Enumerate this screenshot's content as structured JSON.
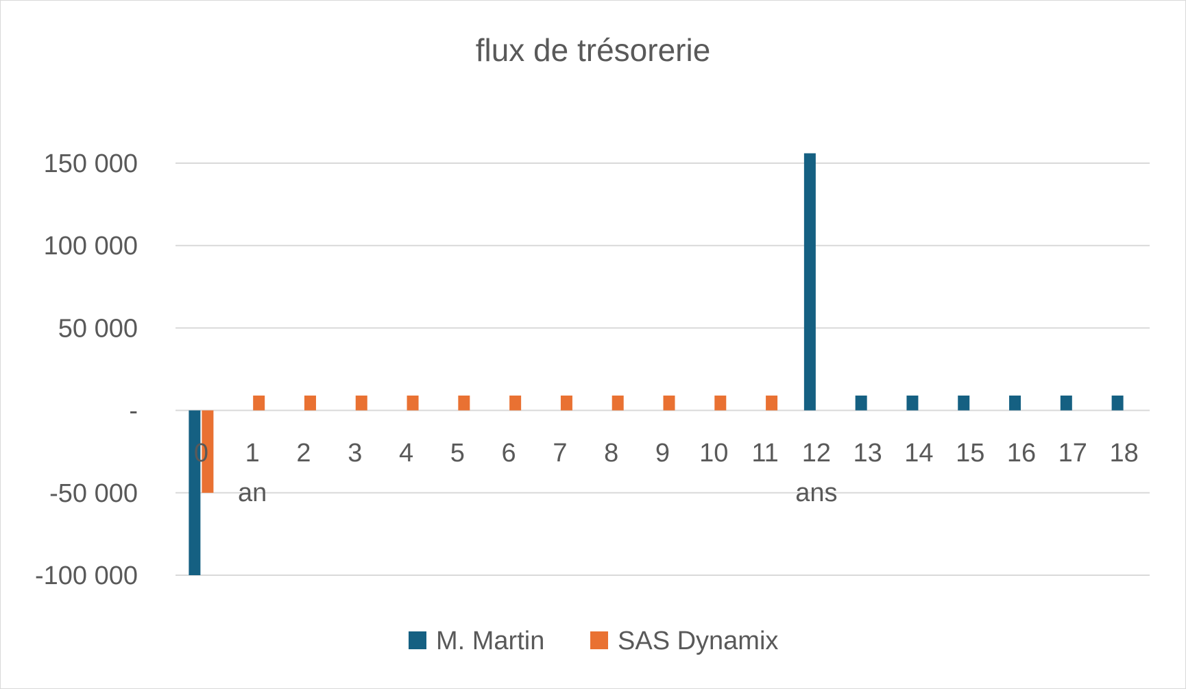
{
  "chart_data": {
    "type": "bar",
    "title": "flux de trésorerie",
    "xlabel": "",
    "ylabel": "",
    "categories": [
      "0",
      "1\nan",
      "2",
      "3",
      "4",
      "5",
      "6",
      "7",
      "8",
      "9",
      "10",
      "11",
      "12\nans",
      "13",
      "14",
      "15",
      "16",
      "17",
      "18"
    ],
    "series": [
      {
        "name": "M. Martin",
        "color": "#156082",
        "values": [
          -100000,
          0,
          0,
          0,
          0,
          0,
          0,
          0,
          0,
          0,
          0,
          0,
          156000,
          9000,
          9000,
          9000,
          9000,
          9000,
          9000
        ]
      },
      {
        "name": "SAS Dynamix",
        "color": "#E97132",
        "values": [
          -50000,
          9000,
          9000,
          9000,
          9000,
          9000,
          9000,
          9000,
          9000,
          9000,
          9000,
          9000,
          0,
          0,
          0,
          0,
          0,
          0,
          0
        ]
      }
    ],
    "ylim": [
      -100000,
      150000
    ],
    "yticks": [
      150000,
      100000,
      50000,
      0,
      -50000,
      -100000
    ],
    "ytick_labels": [
      "150 000",
      "100 000",
      "50 000",
      "-",
      "-50 000",
      "-100 000"
    ],
    "grid": true,
    "legend_position": "bottom"
  }
}
